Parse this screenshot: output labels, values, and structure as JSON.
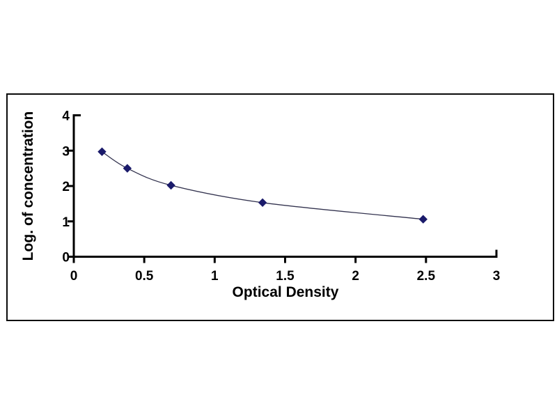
{
  "chart": {
    "background": "#ffffff",
    "frame_border_color": "#0a0a0a",
    "axis_color": "#000000",
    "tick_label_color": "#000000",
    "line_color": "#32324e",
    "marker_color": "#1b1b6b",
    "marker_shape": "diamond"
  },
  "chart_data": {
    "type": "line",
    "title": "",
    "xlabel": "Optical Density",
    "ylabel": "Log. of concentration",
    "x": [
      0.2,
      0.38,
      0.69,
      1.34,
      2.48
    ],
    "y": [
      2.97,
      2.5,
      2.02,
      1.53,
      1.06
    ],
    "xlim": [
      0,
      3
    ],
    "ylim": [
      0,
      4
    ],
    "x_ticks": [
      0,
      0.5,
      1,
      1.5,
      2,
      2.5,
      3
    ],
    "y_ticks": [
      0,
      1,
      2,
      3,
      4
    ],
    "grid": false,
    "legend_position": "none",
    "series_count": 1
  }
}
